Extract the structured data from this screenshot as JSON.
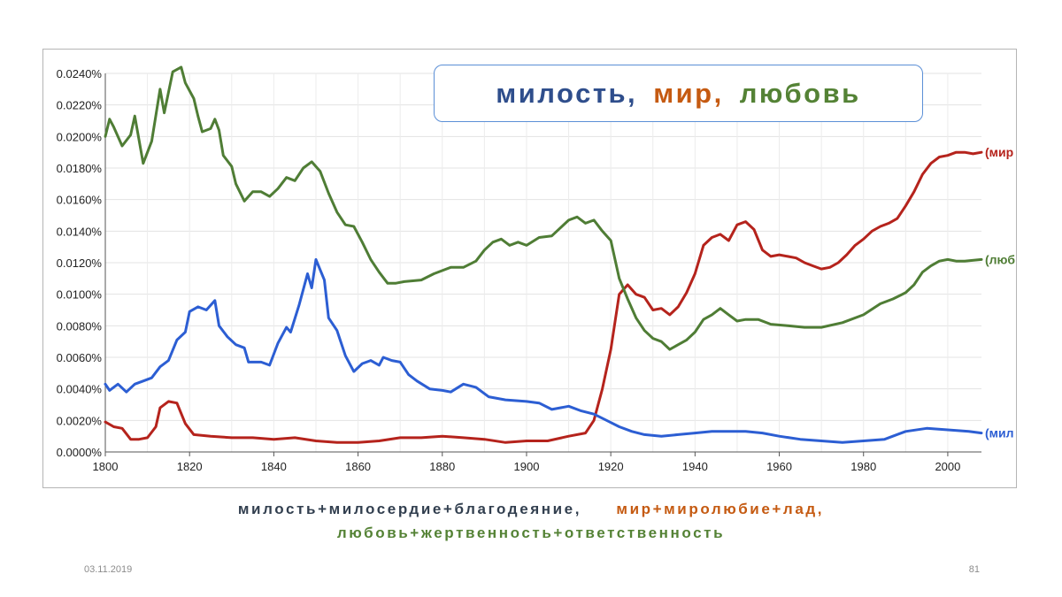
{
  "title": {
    "word1": "милость,",
    "word2": "мир,",
    "word3": "любовь",
    "color1": "#2f4e8c",
    "color2": "#c55a11",
    "color3": "#548235"
  },
  "caption": {
    "line1_part1": "милость+милосердие+благодеяние,",
    "line1_part2": "мир+миролюбие+лад,",
    "line2": "любовь+жертвенность+ответственность",
    "color1": "#323f4f",
    "color2": "#c55a11",
    "color3": "#548235"
  },
  "footer": {
    "date": "03.11.2019",
    "page": "81"
  },
  "chart_data": {
    "type": "line",
    "x_ticks": [
      1800,
      1820,
      1840,
      1860,
      1880,
      1900,
      1920,
      1940,
      1960,
      1980,
      2000
    ],
    "y_ticks": [
      "0.0000%",
      "0.0020%",
      "0.0040%",
      "0.0060%",
      "0.0080%",
      "0.0100%",
      "0.0120%",
      "0.0140%",
      "0.0160%",
      "0.0180%",
      "0.0200%",
      "0.0220%",
      "0.0240%"
    ],
    "xlim": [
      1800,
      2008
    ],
    "ylim": [
      0,
      0.024
    ],
    "grid": true,
    "series": [
      {
        "name": "(мир",
        "color": "#b5231c",
        "points": [
          [
            1800,
            0.0019
          ],
          [
            1802,
            0.0016
          ],
          [
            1804,
            0.0015
          ],
          [
            1806,
            0.0008
          ],
          [
            1808,
            0.0008
          ],
          [
            1810,
            0.0009
          ],
          [
            1812,
            0.0016
          ],
          [
            1813,
            0.0028
          ],
          [
            1815,
            0.0032
          ],
          [
            1817,
            0.0031
          ],
          [
            1819,
            0.0018
          ],
          [
            1821,
            0.0011
          ],
          [
            1825,
            0.001
          ],
          [
            1830,
            0.0009
          ],
          [
            1835,
            0.0009
          ],
          [
            1840,
            0.0008
          ],
          [
            1845,
            0.0009
          ],
          [
            1850,
            0.0007
          ],
          [
            1855,
            0.0006
          ],
          [
            1860,
            0.0006
          ],
          [
            1865,
            0.0007
          ],
          [
            1870,
            0.0009
          ],
          [
            1875,
            0.0009
          ],
          [
            1880,
            0.001
          ],
          [
            1885,
            0.0009
          ],
          [
            1890,
            0.0008
          ],
          [
            1895,
            0.0006
          ],
          [
            1900,
            0.0007
          ],
          [
            1905,
            0.0007
          ],
          [
            1910,
            0.001
          ],
          [
            1914,
            0.0012
          ],
          [
            1916,
            0.002
          ],
          [
            1918,
            0.004
          ],
          [
            1920,
            0.0065
          ],
          [
            1922,
            0.01
          ],
          [
            1924,
            0.0106
          ],
          [
            1926,
            0.01
          ],
          [
            1928,
            0.0098
          ],
          [
            1930,
            0.009
          ],
          [
            1932,
            0.0091
          ],
          [
            1934,
            0.0087
          ],
          [
            1936,
            0.0092
          ],
          [
            1938,
            0.0101
          ],
          [
            1940,
            0.0113
          ],
          [
            1942,
            0.0131
          ],
          [
            1944,
            0.0136
          ],
          [
            1946,
            0.0138
          ],
          [
            1948,
            0.0134
          ],
          [
            1950,
            0.0144
          ],
          [
            1952,
            0.0146
          ],
          [
            1954,
            0.0141
          ],
          [
            1956,
            0.0128
          ],
          [
            1958,
            0.0124
          ],
          [
            1960,
            0.0125
          ],
          [
            1962,
            0.0124
          ],
          [
            1964,
            0.0123
          ],
          [
            1966,
            0.012
          ],
          [
            1968,
            0.0118
          ],
          [
            1970,
            0.0116
          ],
          [
            1972,
            0.0117
          ],
          [
            1974,
            0.012
          ],
          [
            1976,
            0.0125
          ],
          [
            1978,
            0.0131
          ],
          [
            1980,
            0.0135
          ],
          [
            1982,
            0.014
          ],
          [
            1984,
            0.0143
          ],
          [
            1986,
            0.0145
          ],
          [
            1988,
            0.0148
          ],
          [
            1990,
            0.0156
          ],
          [
            1992,
            0.0165
          ],
          [
            1994,
            0.0176
          ],
          [
            1996,
            0.0183
          ],
          [
            1998,
            0.0187
          ],
          [
            2000,
            0.0188
          ],
          [
            2002,
            0.019
          ],
          [
            2004,
            0.019
          ],
          [
            2006,
            0.0189
          ],
          [
            2008,
            0.019
          ]
        ]
      },
      {
        "name": "(люб",
        "color": "#4f7d35",
        "points": [
          [
            1800,
            0.02
          ],
          [
            1801,
            0.0211
          ],
          [
            1802,
            0.0206
          ],
          [
            1804,
            0.0194
          ],
          [
            1806,
            0.0201
          ],
          [
            1807,
            0.0213
          ],
          [
            1809,
            0.0183
          ],
          [
            1811,
            0.0197
          ],
          [
            1813,
            0.023
          ],
          [
            1814,
            0.0215
          ],
          [
            1816,
            0.0241
          ],
          [
            1818,
            0.0244
          ],
          [
            1819,
            0.0234
          ],
          [
            1821,
            0.0224
          ],
          [
            1822,
            0.0213
          ],
          [
            1823,
            0.0203
          ],
          [
            1825,
            0.0205
          ],
          [
            1826,
            0.0211
          ],
          [
            1827,
            0.0204
          ],
          [
            1828,
            0.0188
          ],
          [
            1830,
            0.0181
          ],
          [
            1831,
            0.017
          ],
          [
            1833,
            0.0159
          ],
          [
            1835,
            0.0165
          ],
          [
            1837,
            0.0165
          ],
          [
            1839,
            0.0162
          ],
          [
            1841,
            0.0167
          ],
          [
            1843,
            0.0174
          ],
          [
            1845,
            0.0172
          ],
          [
            1847,
            0.018
          ],
          [
            1849,
            0.0184
          ],
          [
            1851,
            0.0178
          ],
          [
            1853,
            0.0164
          ],
          [
            1855,
            0.0152
          ],
          [
            1857,
            0.0144
          ],
          [
            1859,
            0.0143
          ],
          [
            1861,
            0.0133
          ],
          [
            1863,
            0.0122
          ],
          [
            1865,
            0.0114
          ],
          [
            1867,
            0.0107
          ],
          [
            1869,
            0.0107
          ],
          [
            1871,
            0.0108
          ],
          [
            1875,
            0.0109
          ],
          [
            1878,
            0.0113
          ],
          [
            1882,
            0.0117
          ],
          [
            1885,
            0.0117
          ],
          [
            1888,
            0.0121
          ],
          [
            1890,
            0.0128
          ],
          [
            1892,
            0.0133
          ],
          [
            1894,
            0.0135
          ],
          [
            1896,
            0.0131
          ],
          [
            1898,
            0.0133
          ],
          [
            1900,
            0.0131
          ],
          [
            1903,
            0.0136
          ],
          [
            1906,
            0.0137
          ],
          [
            1908,
            0.0142
          ],
          [
            1910,
            0.0147
          ],
          [
            1912,
            0.0149
          ],
          [
            1914,
            0.0145
          ],
          [
            1916,
            0.0147
          ],
          [
            1918,
            0.014
          ],
          [
            1920,
            0.0134
          ],
          [
            1922,
            0.011
          ],
          [
            1924,
            0.0097
          ],
          [
            1926,
            0.0085
          ],
          [
            1928,
            0.0077
          ],
          [
            1930,
            0.0072
          ],
          [
            1932,
            0.007
          ],
          [
            1934,
            0.0065
          ],
          [
            1936,
            0.0068
          ],
          [
            1938,
            0.0071
          ],
          [
            1940,
            0.0076
          ],
          [
            1942,
            0.0084
          ],
          [
            1944,
            0.0087
          ],
          [
            1946,
            0.0091
          ],
          [
            1948,
            0.0087
          ],
          [
            1950,
            0.0083
          ],
          [
            1952,
            0.0084
          ],
          [
            1955,
            0.0084
          ],
          [
            1958,
            0.0081
          ],
          [
            1962,
            0.008
          ],
          [
            1966,
            0.0079
          ],
          [
            1970,
            0.0079
          ],
          [
            1975,
            0.0082
          ],
          [
            1980,
            0.0087
          ],
          [
            1984,
            0.0094
          ],
          [
            1987,
            0.0097
          ],
          [
            1990,
            0.0101
          ],
          [
            1992,
            0.0106
          ],
          [
            1994,
            0.0114
          ],
          [
            1996,
            0.0118
          ],
          [
            1998,
            0.0121
          ],
          [
            2000,
            0.0122
          ],
          [
            2002,
            0.0121
          ],
          [
            2004,
            0.0121
          ],
          [
            2008,
            0.0122
          ]
        ]
      },
      {
        "name": "(мил",
        "color": "#2c5ed3",
        "points": [
          [
            1800,
            0.0043
          ],
          [
            1801,
            0.0039
          ],
          [
            1803,
            0.0043
          ],
          [
            1805,
            0.0038
          ],
          [
            1807,
            0.0043
          ],
          [
            1809,
            0.0045
          ],
          [
            1811,
            0.0047
          ],
          [
            1813,
            0.0054
          ],
          [
            1815,
            0.0058
          ],
          [
            1817,
            0.0071
          ],
          [
            1819,
            0.0076
          ],
          [
            1820,
            0.0089
          ],
          [
            1822,
            0.0092
          ],
          [
            1824,
            0.009
          ],
          [
            1826,
            0.0096
          ],
          [
            1827,
            0.008
          ],
          [
            1829,
            0.0073
          ],
          [
            1831,
            0.0068
          ],
          [
            1833,
            0.0066
          ],
          [
            1834,
            0.0057
          ],
          [
            1837,
            0.0057
          ],
          [
            1839,
            0.0055
          ],
          [
            1841,
            0.0069
          ],
          [
            1843,
            0.0079
          ],
          [
            1844,
            0.0076
          ],
          [
            1846,
            0.0093
          ],
          [
            1848,
            0.0113
          ],
          [
            1849,
            0.0104
          ],
          [
            1850,
            0.0122
          ],
          [
            1852,
            0.0109
          ],
          [
            1853,
            0.0085
          ],
          [
            1855,
            0.0077
          ],
          [
            1857,
            0.0061
          ],
          [
            1859,
            0.0051
          ],
          [
            1861,
            0.0056
          ],
          [
            1863,
            0.0058
          ],
          [
            1865,
            0.0055
          ],
          [
            1866,
            0.006
          ],
          [
            1868,
            0.0058
          ],
          [
            1870,
            0.0057
          ],
          [
            1872,
            0.0049
          ],
          [
            1874,
            0.0045
          ],
          [
            1877,
            0.004
          ],
          [
            1880,
            0.0039
          ],
          [
            1882,
            0.0038
          ],
          [
            1885,
            0.0043
          ],
          [
            1888,
            0.0041
          ],
          [
            1891,
            0.0035
          ],
          [
            1895,
            0.0033
          ],
          [
            1900,
            0.0032
          ],
          [
            1903,
            0.0031
          ],
          [
            1906,
            0.0027
          ],
          [
            1910,
            0.0029
          ],
          [
            1913,
            0.0026
          ],
          [
            1916,
            0.0024
          ],
          [
            1919,
            0.002
          ],
          [
            1922,
            0.0016
          ],
          [
            1925,
            0.0013
          ],
          [
            1928,
            0.0011
          ],
          [
            1932,
            0.001
          ],
          [
            1936,
            0.0011
          ],
          [
            1940,
            0.0012
          ],
          [
            1944,
            0.0013
          ],
          [
            1948,
            0.0013
          ],
          [
            1952,
            0.0013
          ],
          [
            1956,
            0.0012
          ],
          [
            1960,
            0.001
          ],
          [
            1965,
            0.0008
          ],
          [
            1970,
            0.0007
          ],
          [
            1975,
            0.0006
          ],
          [
            1980,
            0.0007
          ],
          [
            1985,
            0.0008
          ],
          [
            1990,
            0.0013
          ],
          [
            1995,
            0.0015
          ],
          [
            2000,
            0.0014
          ],
          [
            2005,
            0.0013
          ],
          [
            2008,
            0.0012
          ]
        ]
      }
    ]
  }
}
